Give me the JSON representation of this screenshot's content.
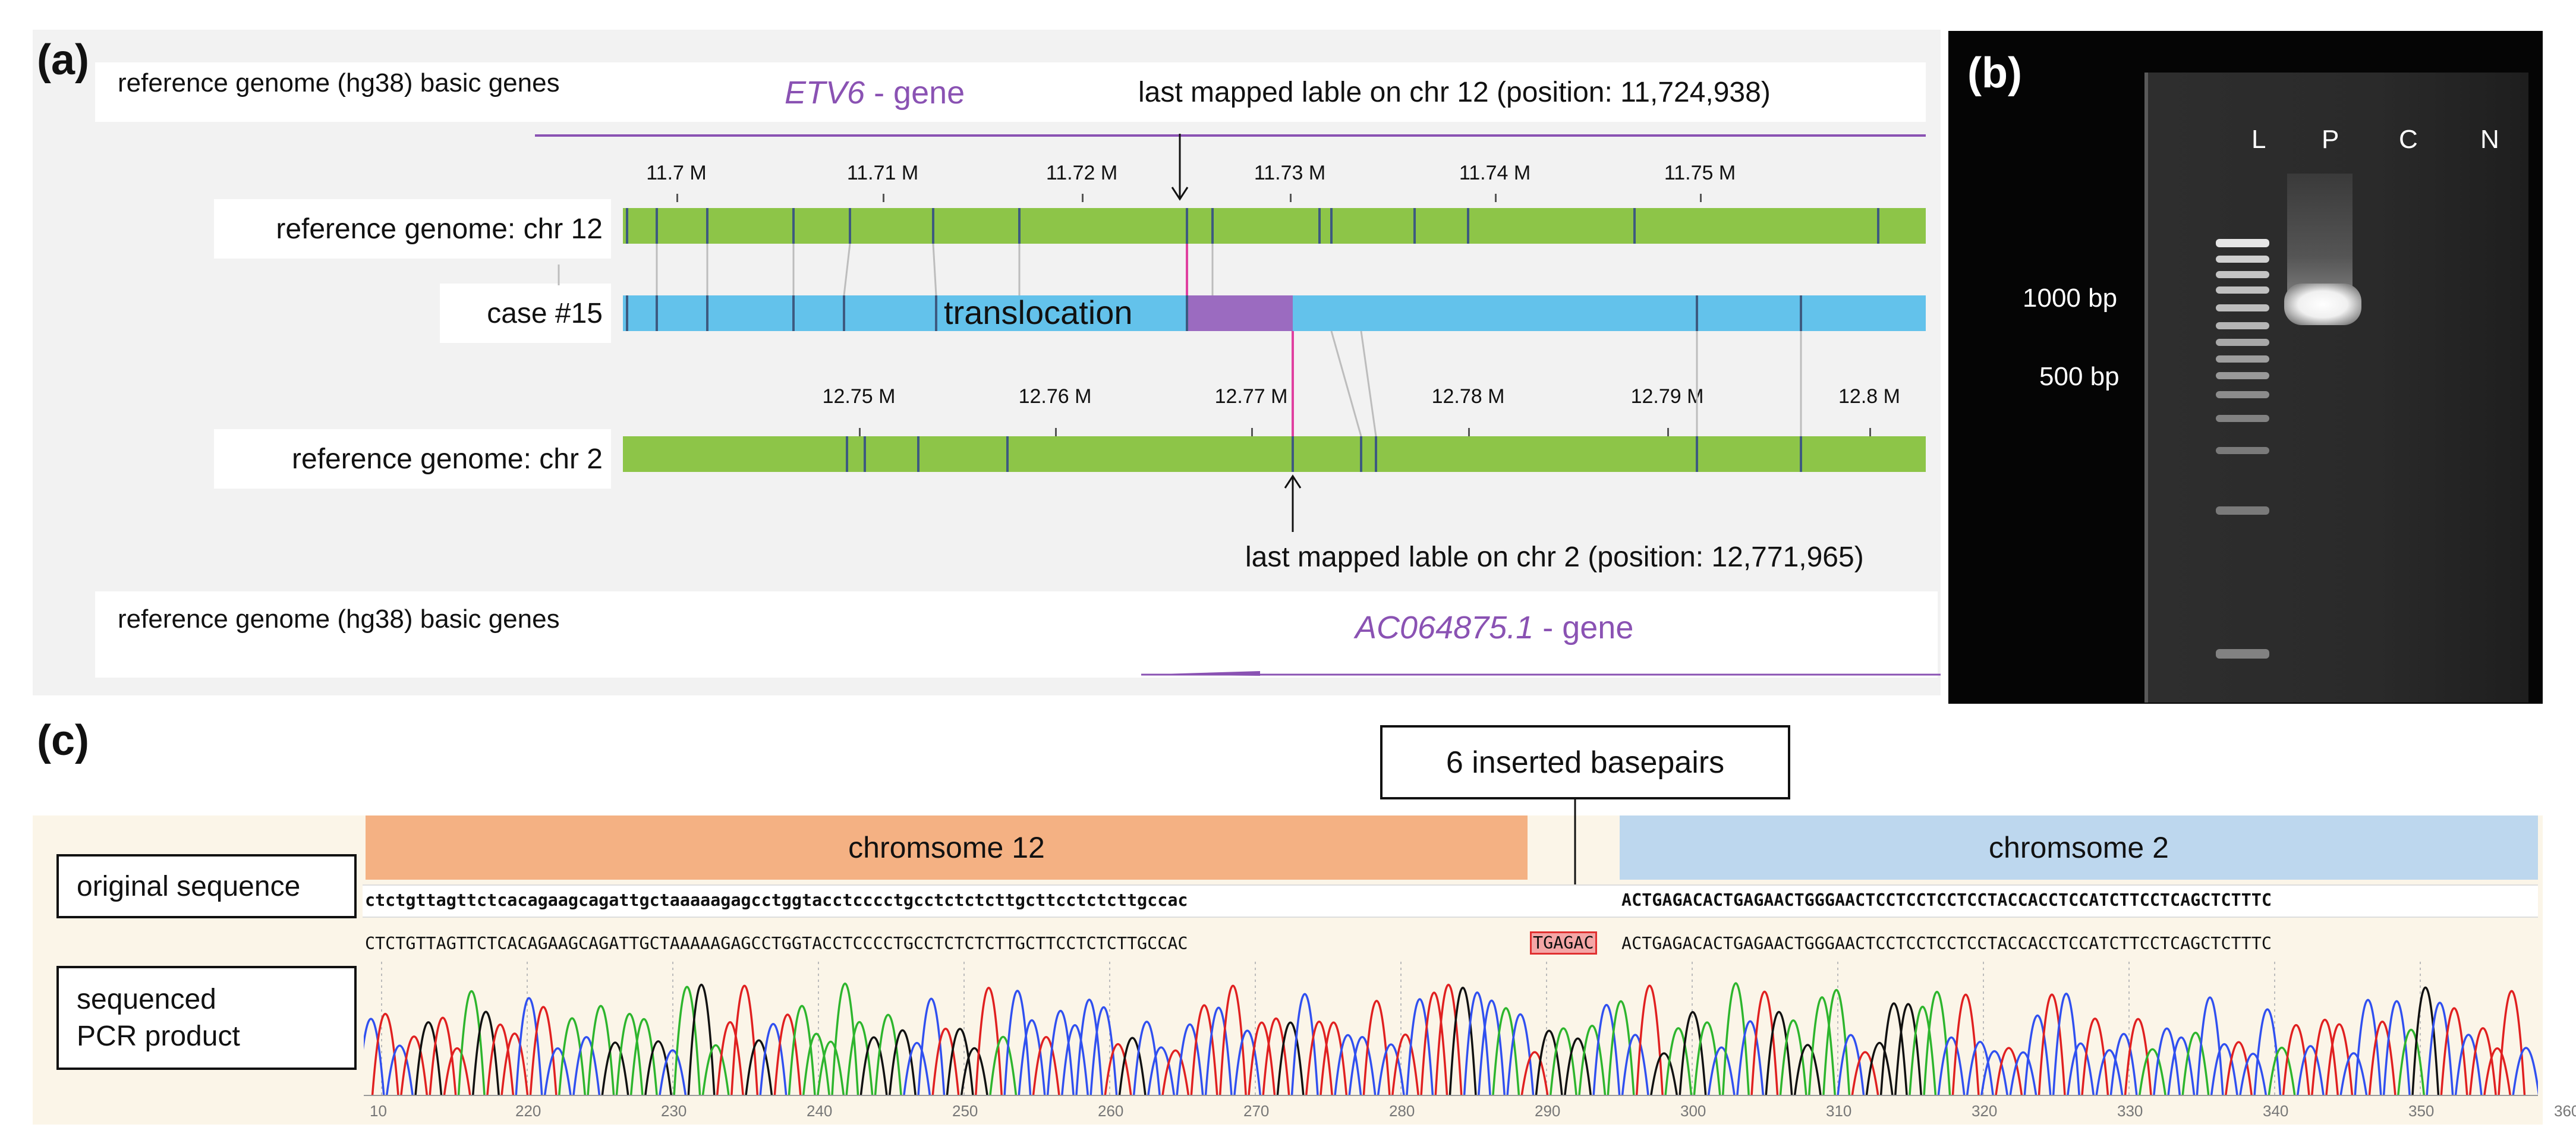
{
  "panel_a": {
    "letter": "(a)",
    "gene_track_top_label": "reference genome (hg38) basic genes",
    "top_gene_name": "ETV6",
    "top_gene_suffix": " - gene",
    "top_annotation": "last mapped lable on chr 12 (position: 11,724,938)",
    "chr12_track_label": "reference genome: chr 12",
    "case_track_label": "case #15",
    "translocation_label": "translocation",
    "chr2_track_label": "reference genome: chr 2",
    "bottom_annotation": "last mapped lable on chr 2 (position: 12,771,965)",
    "gene_track_bottom_label": "reference genome (hg38) basic genes",
    "bottom_gene_name": "AC064875.1",
    "bottom_gene_suffix": " - gene",
    "chr12_ticks": [
      "11.7 M",
      "11.71 M",
      "11.72 M",
      "11.73 M",
      "11.74 M",
      "11.75 M"
    ],
    "chr2_ticks": [
      "12.75 M",
      "12.76 M",
      "12.77 M",
      "12.78 M",
      "12.79 M",
      "12.8 M"
    ],
    "colors": {
      "reference_track": "#8dc548",
      "case_track": "#63c2eb",
      "translocated_segment": "#9b6bc0",
      "gene": "#8a52b3",
      "breakpoint": "#e040a0",
      "label_marker": "#3d5a80"
    }
  },
  "panel_b": {
    "letter": "(b)",
    "lane_labels": [
      "L",
      "P",
      "C",
      "N"
    ],
    "size_markers": [
      "1000 bp",
      "500 bp"
    ]
  },
  "panel_c": {
    "letter": "(c)",
    "insert_annotation": "6 inserted basepairs",
    "chr12_label": "chromsome 12",
    "chr2_label": "chromsome 2",
    "original_label": "original sequence",
    "pcr_label": "sequenced PCR product",
    "original_seq_left": "ctctgttagttctcacagaagcagattgctaaaaagagcctggtacctcccctgcctctctcttgcttcctctcttgccac",
    "original_seq_right": "ACTGAGACACTGAGAACTGGGAACTCCTCCTCCTCCTACCACCTCCATCTTCCTCAGCTCTTTC",
    "pcr_seq_left": "CTCTGTTAGTTCTCACAGAAGCAGATTGCTAAAAAGAGCCTGGTACCTCCCCTGCCTCTCTCTTGCTTCCTCTCTTGCCAC",
    "pcr_seq_insert": "TGAGAC",
    "pcr_seq_right": "ACTGAGACACTGAGAACTGGGAACTCCTCCTCCTCCTACCACCTCCATCTTCCTCAGCTCTTTC",
    "position_ticks": [
      "10",
      "220",
      "230",
      "240",
      "250",
      "260",
      "270",
      "280",
      "290",
      "300",
      "310",
      "320",
      "330",
      "340",
      "350",
      "360"
    ],
    "colors": {
      "chr12_bar": "#f4b183",
      "chr2_bar": "#bdd7ee",
      "insert_highlight": "#f4a6a6",
      "trace_A": "#2db52d",
      "trace_C": "#3050f0",
      "trace_G": "#111111",
      "trace_T": "#e02020"
    }
  }
}
